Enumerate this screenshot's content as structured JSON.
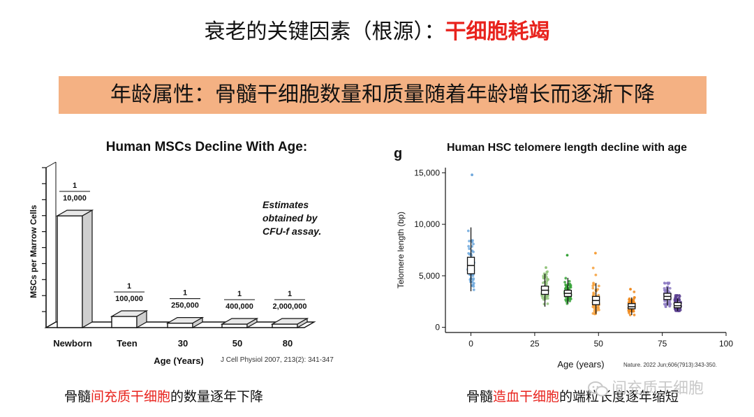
{
  "header": {
    "title_prefix": "衰老的关键因素（根源）：",
    "title_highlight": "干细胞耗竭",
    "banner": "年龄属性：骨髓干细胞数量和质量随着年龄增长而逐渐下降"
  },
  "captions": {
    "left_prefix": "骨髓",
    "left_red": "间充质干细胞",
    "left_suffix": "的数量逐年下降",
    "right_prefix": "骨髓",
    "right_red": "造血干细胞",
    "right_suffix": "的端粒长度逐年缩短"
  },
  "watermark": {
    "text": "间充质干细胞"
  },
  "chart_data": [
    {
      "type": "bar",
      "title": "Human MSCs Decline With Age:",
      "xlabel": "Age (Years)",
      "ylabel": "MSCs per Marrow Cells",
      "categories": [
        "Newborn",
        "Teen",
        "30",
        "50",
        "80"
      ],
      "values": [
        0.0001,
        1e-05,
        4e-06,
        2.5e-06,
        5e-07
      ],
      "fraction_labels": [
        {
          "num": "1",
          "den": "10,000"
        },
        {
          "num": "1",
          "den": "100,000"
        },
        {
          "num": "1",
          "den": "250,000"
        },
        {
          "num": "1",
          "den": "400,000"
        },
        {
          "num": "1",
          "den": "2,000,000"
        }
      ],
      "annotation": [
        "Estimates",
        "obtained by",
        "CFU-f assay."
      ],
      "citation": "J Cell Physiol 2007, 213(2): 341-347"
    },
    {
      "type": "scatter",
      "panel_label": "g",
      "title": "Human HSC telomere length decline with age",
      "xlabel": "Age (years)",
      "ylabel": "Telomere length (bp)",
      "xlim": [
        -10,
        100
      ],
      "ylim": [
        -500,
        15500
      ],
      "xticks": [
        0,
        25,
        50,
        75,
        100
      ],
      "yticks": [
        0,
        5000,
        10000,
        15000
      ],
      "ytick_labels": [
        "0",
        "5,000",
        "10,000",
        "15,000"
      ],
      "citation": "Nature. 2022 Jun;606(7913):343-350.",
      "groups": [
        {
          "age": 0,
          "color": "#6fa8dc",
          "median": 6000,
          "q1": 5200,
          "q3": 6800,
          "lo": 3500,
          "hi": 9700,
          "min": 3500,
          "max": 14800
        },
        {
          "age": 29,
          "color": "#93c47d",
          "median": 3600,
          "q1": 3200,
          "q3": 4000,
          "lo": 2000,
          "hi": 5200,
          "min": 2000,
          "max": 5800
        },
        {
          "age": 38,
          "color": "#38a33a",
          "median": 3300,
          "q1": 3000,
          "q3": 3600,
          "lo": 2300,
          "hi": 4800,
          "min": 2300,
          "max": 7000
        },
        {
          "age": 49,
          "color": "#f6a03b",
          "median": 2600,
          "q1": 2200,
          "q3": 3000,
          "lo": 1300,
          "hi": 4300,
          "min": 1300,
          "max": 7200
        },
        {
          "age": 63,
          "color": "#ef8a1f",
          "median": 2000,
          "q1": 1800,
          "q3": 2300,
          "lo": 1200,
          "hi": 2900,
          "min": 1200,
          "max": 3700
        },
        {
          "age": 77,
          "color": "#8e7cc3",
          "median": 3000,
          "q1": 2700,
          "q3": 3300,
          "lo": 2100,
          "hi": 3900,
          "min": 2000,
          "max": 4300
        },
        {
          "age": 81,
          "color": "#5b3f8f",
          "median": 2100,
          "q1": 1900,
          "q3": 2400,
          "lo": 1600,
          "hi": 2800,
          "min": 1600,
          "max": 3100
        }
      ]
    }
  ]
}
